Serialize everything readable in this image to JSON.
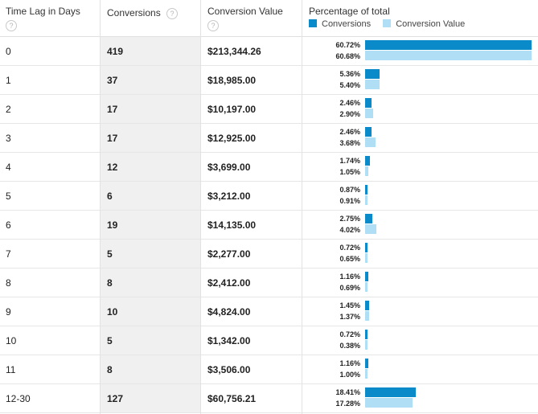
{
  "header": {
    "lag": "Time Lag in Days",
    "conversions": "Conversions",
    "value": "Conversion Value",
    "percentage": "Percentage of total",
    "help_glyph": "?",
    "legend": {
      "conversions": "Conversions",
      "value": "Conversion Value",
      "conversions_color": "#0b8ac9",
      "value_color": "#b0def4"
    }
  },
  "rows": [
    {
      "lag": "0",
      "conversions": "419",
      "value": "$213,344.26",
      "pct_conv": "60.72%",
      "pct_val": "60.68%",
      "conv_frac": 0.6072,
      "val_frac": 0.6068
    },
    {
      "lag": "1",
      "conversions": "37",
      "value": "$18,985.00",
      "pct_conv": "5.36%",
      "pct_val": "5.40%",
      "conv_frac": 0.0536,
      "val_frac": 0.054
    },
    {
      "lag": "2",
      "conversions": "17",
      "value": "$10,197.00",
      "pct_conv": "2.46%",
      "pct_val": "2.90%",
      "conv_frac": 0.0246,
      "val_frac": 0.029
    },
    {
      "lag": "3",
      "conversions": "17",
      "value": "$12,925.00",
      "pct_conv": "2.46%",
      "pct_val": "3.68%",
      "conv_frac": 0.0246,
      "val_frac": 0.0368
    },
    {
      "lag": "4",
      "conversions": "12",
      "value": "$3,699.00",
      "pct_conv": "1.74%",
      "pct_val": "1.05%",
      "conv_frac": 0.0174,
      "val_frac": 0.0105
    },
    {
      "lag": "5",
      "conversions": "6",
      "value": "$3,212.00",
      "pct_conv": "0.87%",
      "pct_val": "0.91%",
      "conv_frac": 0.0087,
      "val_frac": 0.0091
    },
    {
      "lag": "6",
      "conversions": "19",
      "value": "$14,135.00",
      "pct_conv": "2.75%",
      "pct_val": "4.02%",
      "conv_frac": 0.0275,
      "val_frac": 0.0402
    },
    {
      "lag": "7",
      "conversions": "5",
      "value": "$2,277.00",
      "pct_conv": "0.72%",
      "pct_val": "0.65%",
      "conv_frac": 0.0072,
      "val_frac": 0.0065
    },
    {
      "lag": "8",
      "conversions": "8",
      "value": "$2,412.00",
      "pct_conv": "1.16%",
      "pct_val": "0.69%",
      "conv_frac": 0.0116,
      "val_frac": 0.0069
    },
    {
      "lag": "9",
      "conversions": "10",
      "value": "$4,824.00",
      "pct_conv": "1.45%",
      "pct_val": "1.37%",
      "conv_frac": 0.0145,
      "val_frac": 0.0137
    },
    {
      "lag": "10",
      "conversions": "5",
      "value": "$1,342.00",
      "pct_conv": "0.72%",
      "pct_val": "0.38%",
      "conv_frac": 0.0072,
      "val_frac": 0.0038
    },
    {
      "lag": "11",
      "conversions": "8",
      "value": "$3,506.00",
      "pct_conv": "1.16%",
      "pct_val": "1.00%",
      "conv_frac": 0.0116,
      "val_frac": 0.01
    },
    {
      "lag": "12-30",
      "conversions": "127",
      "value": "$60,756.21",
      "pct_conv": "18.41%",
      "pct_val": "17.28%",
      "conv_frac": 0.1841,
      "val_frac": 0.1728
    }
  ]
}
